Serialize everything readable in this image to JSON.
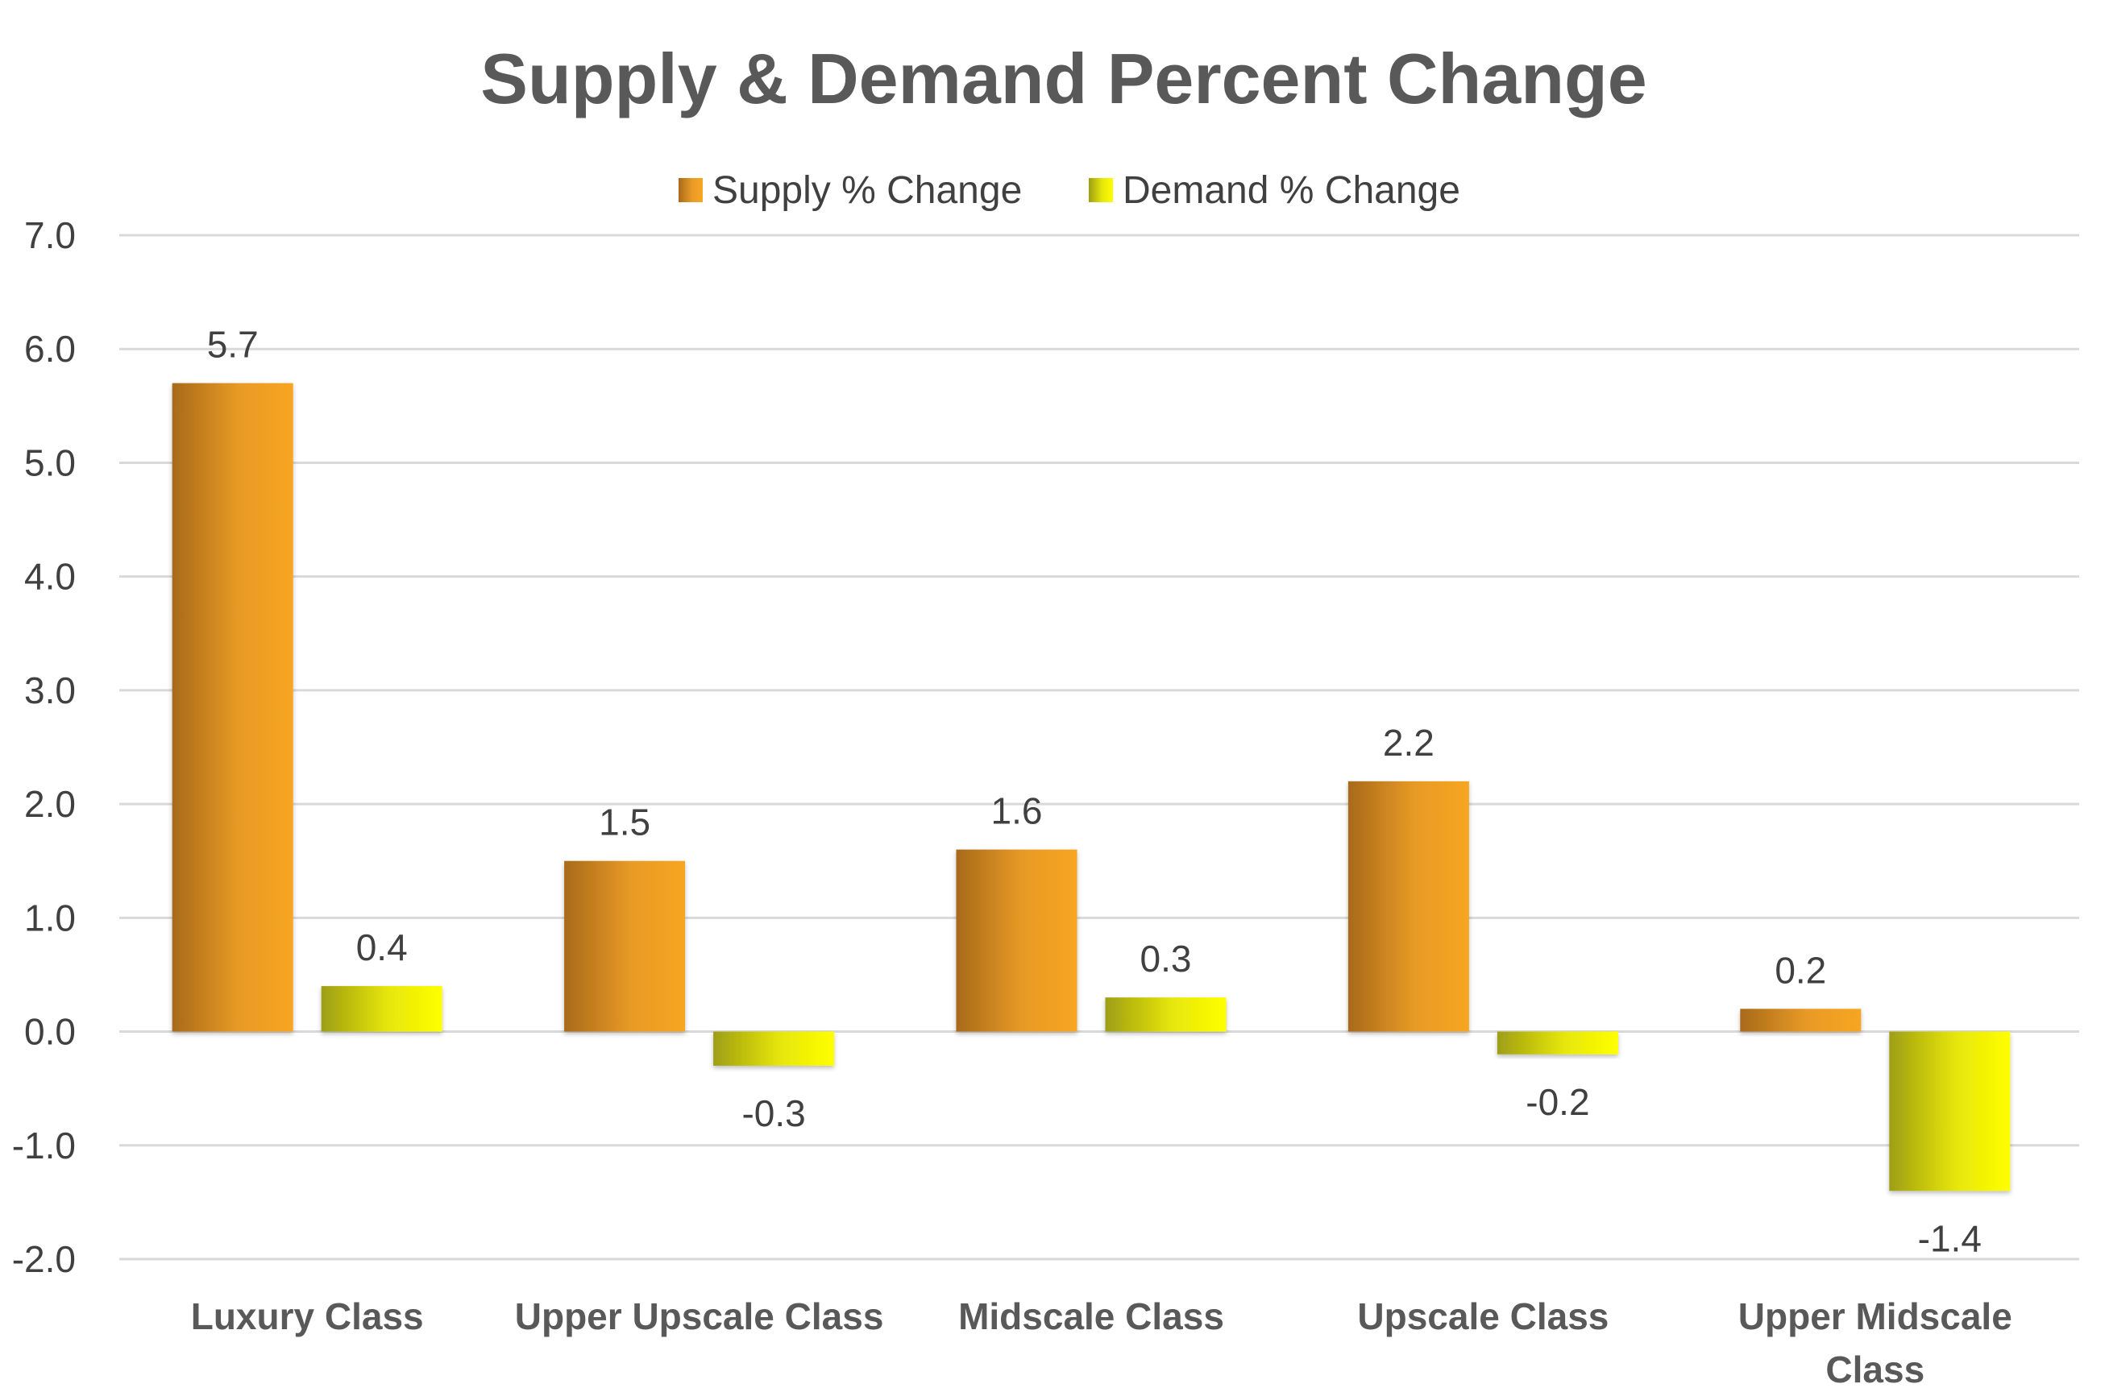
{
  "chart_data": {
    "type": "bar",
    "title": "Supply & Demand Percent Change",
    "xlabel": "",
    "ylabel": "",
    "categories": [
      "Luxury Class",
      "Upper Upscale Class",
      "Midscale Class",
      "Upscale Class",
      "Upper Midscale Class"
    ],
    "series": [
      {
        "name": "Supply % Change",
        "values": [
          5.7,
          1.5,
          1.6,
          2.2,
          0.2
        ],
        "color_dark": "#b8731c",
        "color_light": "#f6a423"
      },
      {
        "name": "Demand % Change",
        "values": [
          0.4,
          -0.3,
          0.3,
          -0.2,
          -1.4
        ],
        "color_dark": "#a8a815",
        "color_light": "#ffff00"
      }
    ],
    "ylim": [
      -2.0,
      7.0
    ],
    "yticks": [
      "7.0",
      "6.0",
      "5.0",
      "4.0",
      "3.0",
      "2.0",
      "1.0",
      "0.0",
      "-1.0",
      "-2.0"
    ],
    "grid": true,
    "legend_position": "top-center"
  }
}
